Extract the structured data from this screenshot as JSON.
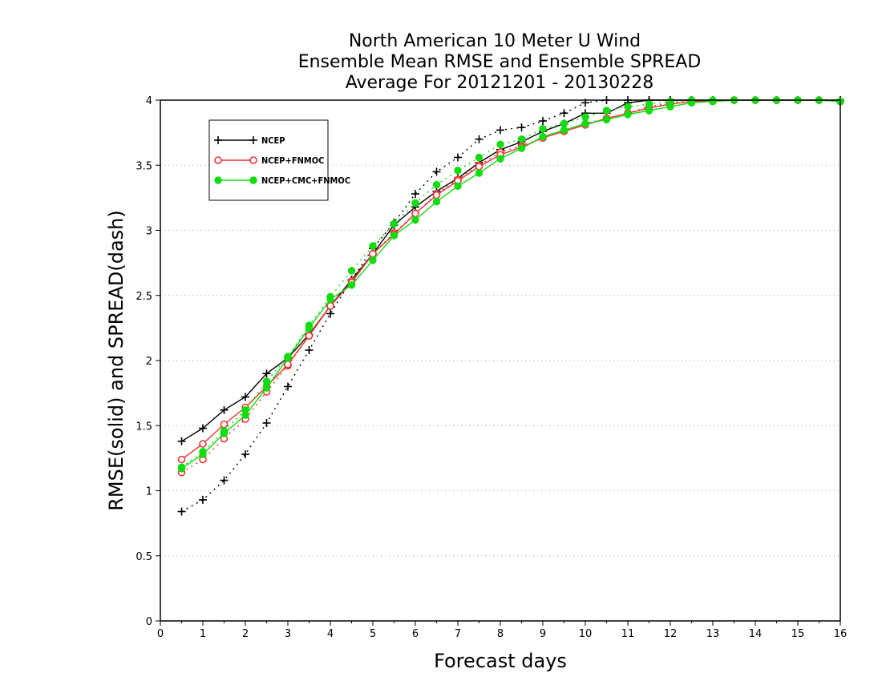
{
  "chart_data": {
    "type": "line",
    "title_lines": [
      "North American 10 Meter U Wind",
      "Ensemble Mean RMSE and Ensemble SPREAD",
      "Average For 20121201 - 20130228"
    ],
    "xlabel": "Forecast days",
    "ylabel": "RMSE(solid) and SPREAD(dash)",
    "xlim": [
      0,
      16
    ],
    "ylim": [
      0,
      4
    ],
    "x_ticks": [
      0,
      1,
      2,
      3,
      4,
      5,
      6,
      7,
      8,
      9,
      10,
      11,
      12,
      13,
      14,
      15,
      16
    ],
    "y_ticks": [
      0,
      0.5,
      1,
      1.5,
      2,
      2.5,
      3,
      3.5,
      4
    ],
    "y_tick_labels": [
      "0",
      "0.5",
      "1",
      "1.5",
      "2",
      "2.5",
      "3",
      "3.5",
      "4"
    ],
    "grid": "horizontal dotted",
    "legend_position": "top-left",
    "x": [
      0.5,
      1,
      1.5,
      2,
      2.5,
      3,
      3.5,
      4,
      4.5,
      5,
      5.5,
      6,
      6.5,
      7,
      7.5,
      8,
      8.5,
      9,
      9.5,
      10,
      10.5,
      11,
      11.5,
      12,
      12.5,
      13,
      13.5,
      14,
      14.5,
      15,
      15.5,
      16
    ],
    "series": [
      {
        "name": "NCEP",
        "color": "#000000",
        "marker": "plus",
        "rmse": [
          1.38,
          1.48,
          1.62,
          1.72,
          1.9,
          2.02,
          2.2,
          2.42,
          2.62,
          2.82,
          3.04,
          3.18,
          3.3,
          3.4,
          3.52,
          3.62,
          3.68,
          3.76,
          3.82,
          3.9,
          3.9,
          3.98,
          4.02,
          4.05,
          4.05,
          4.03,
          4.02,
          4.01,
          4.0,
          4.0,
          4.0,
          4.0
        ],
        "spread": [
          0.84,
          0.93,
          1.08,
          1.28,
          1.52,
          1.8,
          2.08,
          2.36,
          2.62,
          2.86,
          3.06,
          3.28,
          3.45,
          3.56,
          3.7,
          3.77,
          3.79,
          3.84,
          3.9,
          3.98,
          4.02,
          4.04,
          4.05,
          4.05,
          4.04,
          4.03,
          4.02,
          4.01,
          4.0,
          4.0,
          4.0,
          4.0
        ]
      },
      {
        "name": "NCEP+FNMOC",
        "color": "#ee3333",
        "marker": "open-circle",
        "rmse": [
          1.24,
          1.36,
          1.51,
          1.64,
          1.8,
          1.97,
          2.19,
          2.42,
          2.6,
          2.82,
          2.97,
          3.13,
          3.27,
          3.38,
          3.49,
          3.58,
          3.64,
          3.71,
          3.76,
          3.81,
          3.86,
          3.9,
          3.94,
          3.97,
          3.99,
          3.99,
          4.0,
          4.0,
          4.0,
          4.0,
          4.0,
          3.99
        ],
        "spread": [
          1.14,
          1.24,
          1.4,
          1.55,
          1.76,
          1.96,
          2.19,
          2.42,
          2.61,
          2.82,
          2.98,
          3.13,
          3.28,
          3.39,
          3.5,
          3.6,
          3.65,
          3.71,
          3.77,
          3.82,
          3.86,
          3.9,
          3.95,
          3.98,
          3.99,
          3.99,
          4.0,
          4.0,
          4.0,
          4.0,
          4.0,
          3.99
        ]
      },
      {
        "name": "NCEP+CMC+FNMOC",
        "color": "#11dd11",
        "marker": "filled-circle",
        "rmse": [
          1.17,
          1.28,
          1.44,
          1.58,
          1.79,
          2.02,
          2.25,
          2.47,
          2.58,
          2.77,
          2.96,
          3.08,
          3.22,
          3.34,
          3.44,
          3.55,
          3.63,
          3.72,
          3.77,
          3.82,
          3.85,
          3.89,
          3.92,
          3.95,
          3.98,
          3.99,
          4.0,
          4.0,
          4.0,
          4.0,
          4.0,
          3.99
        ],
        "spread": [
          1.18,
          1.3,
          1.46,
          1.62,
          1.84,
          2.03,
          2.27,
          2.49,
          2.69,
          2.88,
          3.05,
          3.21,
          3.35,
          3.46,
          3.56,
          3.66,
          3.7,
          3.78,
          3.82,
          3.87,
          3.92,
          3.95,
          3.97,
          3.99,
          4.0,
          4.0,
          4.0,
          4.0,
          4.0,
          4.0,
          4.0,
          3.99
        ]
      }
    ]
  }
}
